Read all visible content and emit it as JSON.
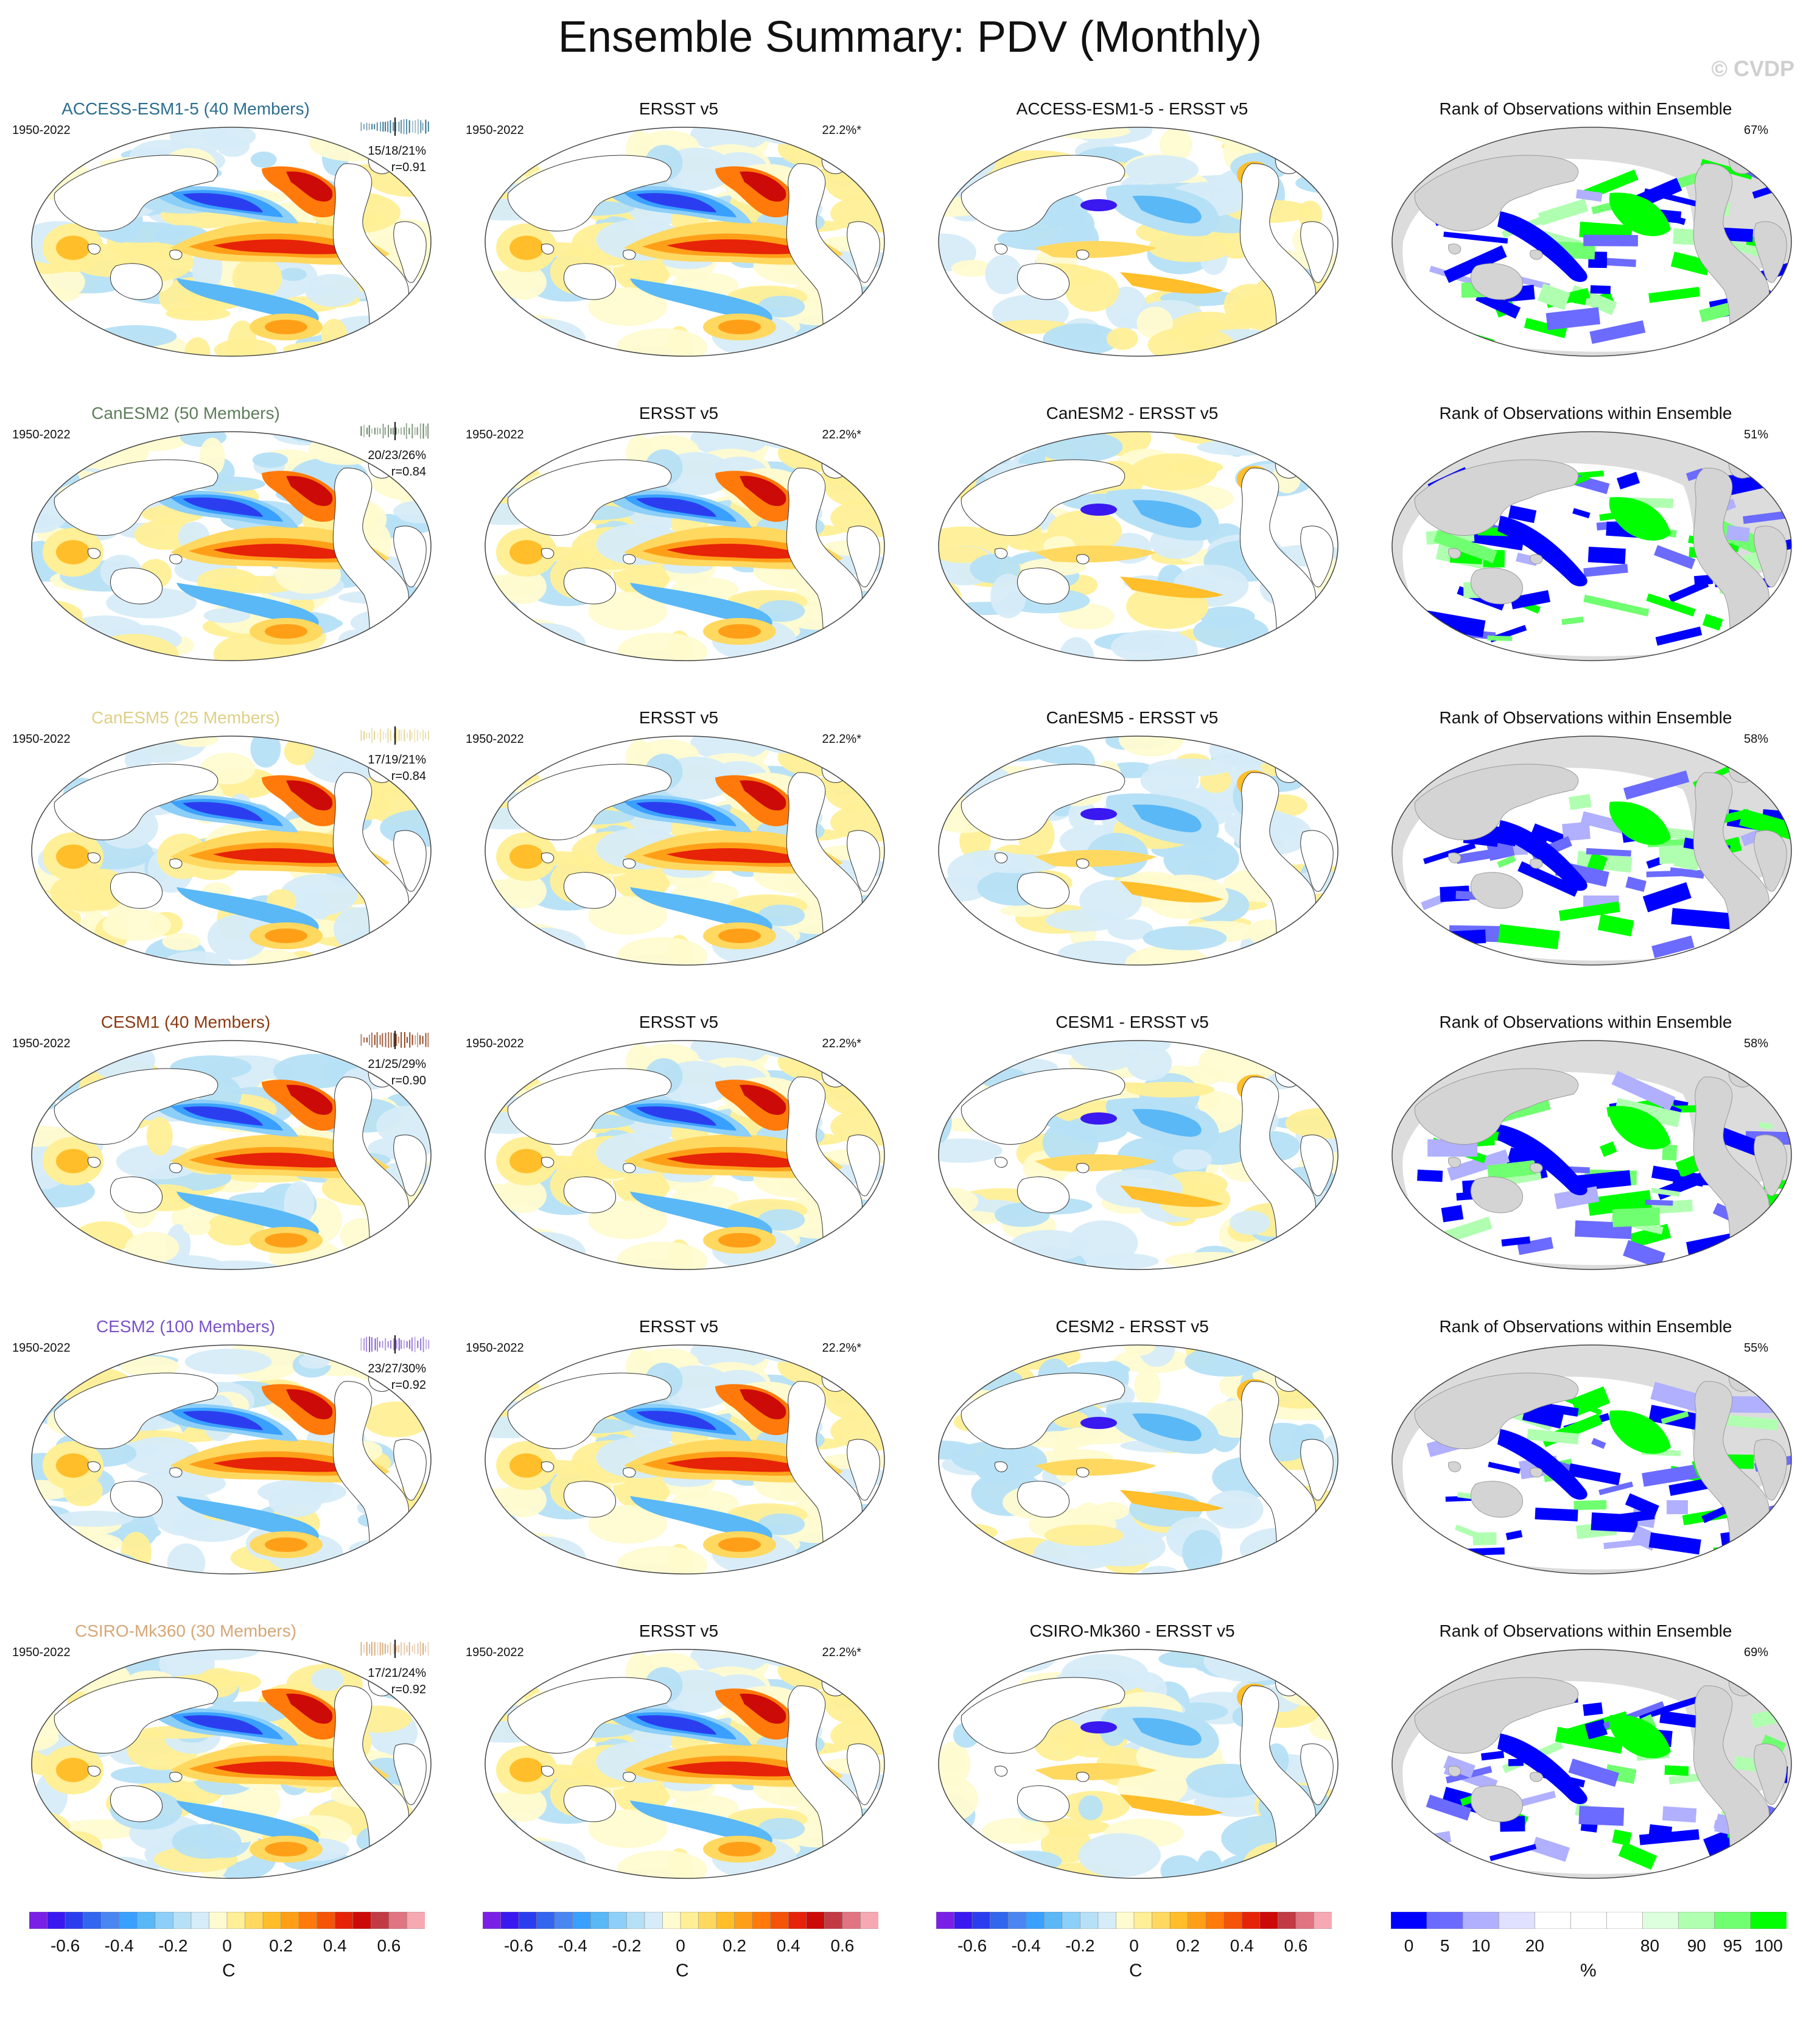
{
  "header": {
    "title": "Ensemble Summary: PDV (Monthly)",
    "credit": "© CVDP"
  },
  "obs_name": "ERSST v5",
  "obs_pct": "22.2%*",
  "period": "1950-2022",
  "rank_title": "Rank of Observations within Ensemble",
  "rows": [
    {
      "model": "ACCESS-ESM1-5 (40 Members)",
      "model_color": "#2c6e8f",
      "stats_pct": "15/18/21%",
      "corr": "r=0.91",
      "diff_title": "ACCESS-ESM1-5 - ERSST v5",
      "rank_pct": "67%"
    },
    {
      "model": "CanESM2 (50 Members)",
      "model_color": "#5e7d5a",
      "stats_pct": "20/23/26%",
      "corr": "r=0.84",
      "diff_title": "CanESM2 - ERSST v5",
      "rank_pct": "51%"
    },
    {
      "model": "CanESM5 (25 Members)",
      "model_color": "#e0cf86",
      "stats_pct": "17/19/21%",
      "corr": "r=0.84",
      "diff_title": "CanESM5 - ERSST v5",
      "rank_pct": "58%"
    },
    {
      "model": "CESM1 (40 Members)",
      "model_color": "#8b3a12",
      "stats_pct": "21/25/29%",
      "corr": "r=0.90",
      "diff_title": "CESM1 - ERSST v5",
      "rank_pct": "58%"
    },
    {
      "model": "CESM2 (100 Members)",
      "model_color": "#7b52c9",
      "stats_pct": "23/27/30%",
      "corr": "r=0.92",
      "diff_title": "CESM2 - ERSST v5",
      "rank_pct": "55%"
    },
    {
      "model": "CSIRO-Mk360 (30 Members)",
      "model_color": "#d6a777",
      "stats_pct": "17/21/24%",
      "corr": "r=0.92",
      "diff_title": "CSIRO-Mk360 - ERSST v5",
      "rank_pct": "69%"
    }
  ],
  "colorbars": {
    "sst": {
      "labels": [
        "-0.6",
        "-0.4",
        "-0.2",
        "0",
        "0.2",
        "0.4",
        "0.6"
      ],
      "unit": "C",
      "colors": [
        "#7a1fe6",
        "#3a18f0",
        "#2a3ef0",
        "#3366ee",
        "#4a86f2",
        "#3aa0ff",
        "#5ab8f6",
        "#8ccff8",
        "#b6e0f6",
        "#d6ecf8",
        "#fffbd0",
        "#ffef96",
        "#ffd860",
        "#ffbe2a",
        "#ff9f18",
        "#ff7a0a",
        "#f55308",
        "#e62208",
        "#cc0a08",
        "#c23a44",
        "#e07480",
        "#f6a9b3"
      ]
    },
    "rank": {
      "labels": [
        "0",
        "5",
        "10",
        "20",
        "80",
        "90",
        "95",
        "100"
      ],
      "unit": "%",
      "colors": [
        "#0000ff",
        "#6b6bff",
        "#b0b0ff",
        "#e0e0ff",
        "#ffffff",
        "#ffffff",
        "#ffffff",
        "#ddffdd",
        "#b0ffb0",
        "#70ff70",
        "#00ff00"
      ]
    }
  }
}
